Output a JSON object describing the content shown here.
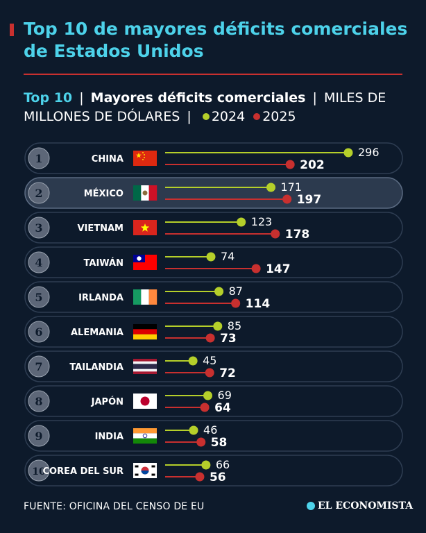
{
  "colors": {
    "background": "#0d1a2b",
    "title": "#4dd2ea",
    "accent_red": "#c8302f",
    "series_2024": "#b5cf2a",
    "series_2025": "#c8302f",
    "row_bg": "#0d1a2b",
    "row_border": "#2e3d52",
    "highlight_bg": "#2c3a4e"
  },
  "title": "Top 10 de mayores déficits comerciales de Estados Unidos",
  "subtitle": {
    "top": "Top 10",
    "sep": "|",
    "main": "Mayores déficits comerciales",
    "unit": "MILES DE MILLONES DE DÓLARES",
    "legend_2024": "2024",
    "legend_2025": "2025"
  },
  "chart_data": {
    "type": "bar",
    "title": "Top 10 de mayores déficits comerciales de Estados Unidos",
    "unit": "MILES DE MILLONES DE DÓLARES",
    "highlighted": "MÉXICO",
    "categories": [
      "CHINA",
      "MÉXICO",
      "VIETNAM",
      "TAIWÁN",
      "IRLANDA",
      "ALEMANIA",
      "TAILANDIA",
      "JAPÓN",
      "INDIA",
      "COREA DEL SUR"
    ],
    "ranks": [
      "1",
      "2",
      "3",
      "4",
      "5",
      "6",
      "7",
      "8",
      "9",
      "10"
    ],
    "flags": [
      "china-flag",
      "mexico-flag",
      "vietnam-flag",
      "taiwan-flag",
      "ireland-flag",
      "germany-flag",
      "thailand-flag",
      "japan-flag",
      "india-flag",
      "south-korea-flag"
    ],
    "series": [
      {
        "name": "2024",
        "values": [
          296,
          171,
          123,
          74,
          87,
          85,
          45,
          69,
          46,
          66
        ]
      },
      {
        "name": "2025",
        "values": [
          202,
          197,
          178,
          147,
          114,
          73,
          72,
          64,
          58,
          56
        ]
      }
    ],
    "xlim": [
      0,
      296
    ]
  },
  "footer": {
    "source": "FUENTE: OFICINA DEL CENSO DE EU",
    "brand": "EL ECONOMISTA",
    "brand_icon": "el-economista-logo-icon"
  }
}
